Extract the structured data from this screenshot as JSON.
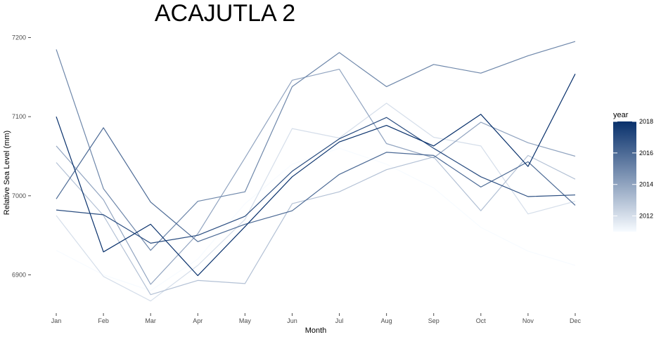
{
  "chart_data": {
    "type": "line",
    "title": "ACAJUTLA 2",
    "xlabel": "Month",
    "ylabel": "Relative Sea Level (mm)",
    "categories": [
      "Jan",
      "Feb",
      "Mar",
      "Apr",
      "May",
      "Jun",
      "Jul",
      "Aug",
      "Sep",
      "Oct",
      "Nov",
      "Dec"
    ],
    "yticks": [
      6900,
      7000,
      7100,
      7200
    ],
    "ylim": [
      6855,
      7210
    ],
    "grid": false,
    "legend": {
      "title": "year",
      "placement": "right",
      "type": "colorbar",
      "range": [
        2011,
        2018
      ],
      "ticks": [
        2012,
        2014,
        2016,
        2018
      ],
      "color_low": "#f7fbff",
      "color_high": "#08306b"
    },
    "series": [
      {
        "year": 2011,
        "values": [
          6931,
          6900,
          6880,
          6920,
          6990,
          7040,
          7060,
          7040,
          7010,
          6960,
          6930,
          6912
        ]
      },
      {
        "year": 2012,
        "values": [
          6975,
          6898,
          6867,
          6912,
          6970,
          7085,
          7073,
          7117,
          7074,
          7063,
          6977,
          6993
        ]
      },
      {
        "year": 2013,
        "values": [
          7042,
          6975,
          6875,
          6893,
          6889,
          6990,
          7005,
          7033,
          7049,
          6981,
          7051,
          7021
        ]
      },
      {
        "year": 2014,
        "values": [
          7063,
          6995,
          6888,
          6952,
          7048,
          7146,
          7160,
          7066,
          7048,
          7093,
          7067,
          7050
        ]
      },
      {
        "year": 2015,
        "values": [
          7185,
          7009,
          6931,
          6993,
          7005,
          7138,
          7181,
          7138,
          7166,
          7155,
          7177,
          7195
        ]
      },
      {
        "year": 2016,
        "values": [
          6996,
          7086,
          6992,
          6942,
          6964,
          6981,
          7027,
          7055,
          7051,
          7011,
          7043,
          6988
        ]
      },
      {
        "year": 2017,
        "values": [
          6982,
          6976,
          6940,
          6950,
          6974,
          7031,
          7072,
          7099,
          7060,
          7024,
          6999,
          7001
        ]
      },
      {
        "year": 2018,
        "values": [
          7100,
          6929,
          6964,
          6899,
          6961,
          7024,
          7068,
          7089,
          7063,
          7103,
          7037,
          7154
        ]
      }
    ]
  }
}
